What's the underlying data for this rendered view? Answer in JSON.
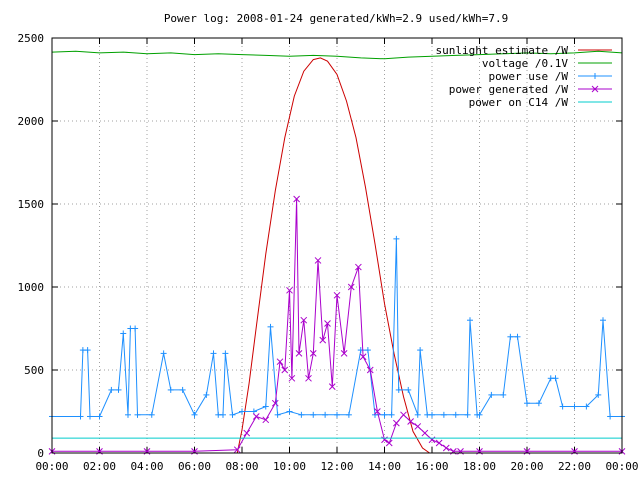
{
  "chart_data": {
    "type": "line",
    "title": "Power log: 2008-01-24 generated/kWh=2.9 used/kWh=7.9",
    "xlabel": "",
    "ylabel": "",
    "xlim": [
      0,
      24
    ],
    "ylim": [
      0,
      2500
    ],
    "x_ticks": [
      "00:00",
      "02:00",
      "04:00",
      "06:00",
      "08:00",
      "10:00",
      "12:00",
      "14:00",
      "16:00",
      "18:00",
      "20:00",
      "22:00",
      "00:00"
    ],
    "y_ticks": [
      "0",
      "500",
      "1000",
      "1500",
      "2000",
      "2500"
    ],
    "y_tick_values": [
      0,
      500,
      1000,
      1500,
      2000,
      2500
    ],
    "grid": true,
    "legend_position": "top-right",
    "series": [
      {
        "name": "sunlight estimate /W",
        "color": "#cc0000",
        "style": "line",
        "x": [
          7.8,
          8.0,
          8.3,
          8.6,
          9.0,
          9.4,
          9.8,
          10.2,
          10.6,
          11.0,
          11.3,
          11.6,
          12.0,
          12.4,
          12.8,
          13.2,
          13.6,
          14.0,
          14.4,
          14.8,
          15.2,
          15.6,
          15.9
        ],
        "y": [
          0,
          140,
          420,
          760,
          1200,
          1580,
          1900,
          2150,
          2300,
          2370,
          2380,
          2360,
          2280,
          2120,
          1900,
          1600,
          1260,
          900,
          600,
          340,
          130,
          30,
          0
        ]
      },
      {
        "name": "voltage /0.1V",
        "color": "#00a000",
        "style": "line",
        "x": [
          0,
          1,
          2,
          3,
          4,
          5,
          6,
          7,
          8,
          9,
          10,
          11,
          12,
          13,
          14,
          15,
          16,
          17,
          18,
          19,
          20,
          21,
          22,
          23,
          24
        ],
        "y": [
          2415,
          2420,
          2410,
          2415,
          2405,
          2410,
          2400,
          2405,
          2400,
          2395,
          2390,
          2395,
          2390,
          2380,
          2375,
          2385,
          2390,
          2395,
          2400,
          2405,
          2410,
          2405,
          2410,
          2420,
          2410
        ]
      },
      {
        "name": "power use /W",
        "color": "#1e90ff",
        "style": "linespoints-plus",
        "x": [
          0,
          1.2,
          1.3,
          1.5,
          1.6,
          2.0,
          2.5,
          2.8,
          3.0,
          3.2,
          3.3,
          3.5,
          3.6,
          4.2,
          4.7,
          5.0,
          5.5,
          6.0,
          6.5,
          6.8,
          7.0,
          7.2,
          7.3,
          7.6,
          8.0,
          8.5,
          9.0,
          9.2,
          9.5,
          10.0,
          10.5,
          11.0,
          11.5,
          12.0,
          12.5,
          13.0,
          13.3,
          13.6,
          14.0,
          14.3,
          14.5,
          14.6,
          15.0,
          15.4,
          15.5,
          15.8,
          16.0,
          16.5,
          17.0,
          17.5,
          17.6,
          17.9,
          18.0,
          18.5,
          19.0,
          19.3,
          19.6,
          20.0,
          20.5,
          21.0,
          21.2,
          21.5,
          22.0,
          22.5,
          23.0,
          23.2,
          23.5,
          24.0
        ],
        "y": [
          220,
          220,
          620,
          620,
          220,
          220,
          380,
          380,
          720,
          230,
          750,
          750,
          230,
          230,
          600,
          380,
          380,
          230,
          350,
          600,
          230,
          230,
          600,
          230,
          250,
          250,
          280,
          760,
          230,
          250,
          230,
          230,
          230,
          230,
          230,
          620,
          620,
          230,
          230,
          230,
          1290,
          380,
          380,
          230,
          620,
          230,
          230,
          230,
          230,
          230,
          800,
          230,
          230,
          350,
          350,
          700,
          700,
          300,
          300,
          450,
          450,
          280,
          280,
          280,
          350,
          800,
          220,
          220
        ]
      },
      {
        "name": "power generated /W",
        "color": "#aa00cc",
        "style": "linespoints-x",
        "x": [
          0,
          2,
          4,
          6,
          7.8,
          8.2,
          8.6,
          9.0,
          9.4,
          9.6,
          9.8,
          10.0,
          10.1,
          10.3,
          10.4,
          10.6,
          10.8,
          11.0,
          11.2,
          11.4,
          11.6,
          11.8,
          12.0,
          12.3,
          12.6,
          12.9,
          13.1,
          13.4,
          13.7,
          14.0,
          14.2,
          14.5,
          14.8,
          15.1,
          15.4,
          15.7,
          16.0,
          16.3,
          16.6,
          16.9,
          17.2,
          18,
          20,
          22,
          24
        ],
        "y": [
          10,
          10,
          10,
          10,
          20,
          120,
          220,
          200,
          300,
          550,
          500,
          980,
          450,
          1530,
          600,
          800,
          450,
          600,
          1160,
          680,
          780,
          400,
          950,
          600,
          1000,
          1120,
          580,
          500,
          250,
          80,
          60,
          180,
          230,
          190,
          160,
          120,
          80,
          60,
          30,
          10,
          10,
          10,
          10,
          10,
          10
        ]
      },
      {
        "name": "power on C14 /W",
        "color": "#00cccc",
        "style": "line",
        "x": [
          0,
          24
        ],
        "y": [
          90,
          90
        ]
      }
    ]
  }
}
